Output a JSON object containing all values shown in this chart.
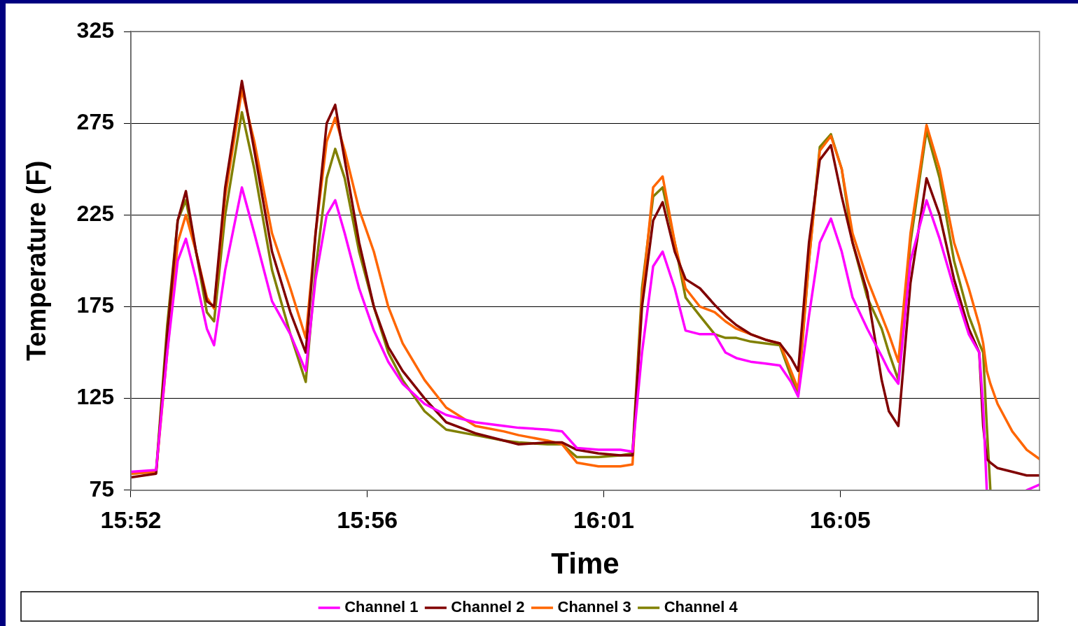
{
  "chart_data": {
    "type": "line",
    "xlabel": "Time",
    "ylabel": "Temperature (F)",
    "grid": "y",
    "legend": "bottom",
    "marker": "none",
    "xlim": [
      15.8667,
      16.1442
    ],
    "ylim": [
      75,
      325
    ],
    "yticks": [
      75,
      125,
      175,
      225,
      275,
      325
    ],
    "xticks": [
      {
        "value": 15.8667,
        "label": "15:52"
      },
      {
        "value": 15.9389,
        "label": "15:56"
      },
      {
        "value": 16.0111,
        "label": "16:01"
      },
      {
        "value": 16.0833,
        "label": "16:05"
      }
    ],
    "x": [
      15.8667,
      15.8744,
      15.8778,
      15.881,
      15.8835,
      15.8866,
      15.8899,
      15.8921,
      15.8955,
      15.9006,
      15.9044,
      15.9098,
      15.9154,
      15.9201,
      15.9231,
      15.9265,
      15.9291,
      15.932,
      15.9364,
      15.9409,
      15.9453,
      15.9497,
      15.9564,
      15.963,
      15.9719,
      15.9807,
      15.9851,
      15.994,
      15.9984,
      16.0029,
      16.0095,
      16.0162,
      16.0199,
      16.0228,
      16.0262,
      16.0291,
      16.0328,
      16.0361,
      16.0405,
      16.045,
      16.0483,
      16.0516,
      16.056,
      16.0605,
      16.0649,
      16.0683,
      16.0705,
      16.0738,
      16.0771,
      16.0805,
      16.0838,
      16.0871,
      16.0916,
      16.096,
      16.0982,
      16.1011,
      16.1048,
      16.1097,
      16.1137,
      16.1181,
      16.1226,
      16.1258,
      16.127,
      16.1281,
      16.1292,
      16.1314,
      16.1359,
      16.1403,
      16.1442
    ],
    "series": [
      {
        "name": "Channel 1",
        "color": "#ff00ff",
        "values": [
          85,
          86,
          150,
          200,
          212,
          190,
          163,
          154,
          195,
          240,
          215,
          178,
          160,
          140,
          190,
          225,
          233,
          215,
          185,
          162,
          145,
          133,
          122,
          116,
          112,
          110,
          109,
          108,
          107,
          98,
          97,
          97,
          96,
          150,
          197,
          205,
          185,
          162,
          160,
          160,
          150,
          147,
          145,
          144,
          143,
          134,
          126,
          170,
          210,
          223,
          205,
          180,
          163,
          148,
          140,
          133,
          200,
          233,
          212,
          185,
          160,
          150,
          120,
          75,
          null,
          null,
          null,
          75,
          78
        ]
      },
      {
        "name": "Channel 2",
        "color": "#800000",
        "values": [
          82,
          84,
          160,
          222,
          238,
          205,
          178,
          175,
          240,
          298,
          260,
          205,
          172,
          150,
          215,
          275,
          285,
          255,
          210,
          175,
          153,
          140,
          125,
          112,
          106,
          102,
          100,
          101,
          101,
          97,
          95,
          94,
          94,
          175,
          222,
          232,
          205,
          190,
          185,
          176,
          170,
          165,
          160,
          157,
          155,
          147,
          140,
          210,
          255,
          263,
          235,
          210,
          183,
          135,
          118,
          110,
          188,
          245,
          225,
          190,
          163,
          150,
          110,
          92,
          90,
          87,
          85,
          83,
          83
        ]
      },
      {
        "name": "Channel 3",
        "color": "#ff6600",
        "values": [
          84,
          85,
          150,
          210,
          225,
          205,
          180,
          174,
          235,
          293,
          265,
          215,
          185,
          158,
          215,
          265,
          278,
          260,
          228,
          205,
          175,
          155,
          135,
          120,
          110,
          107,
          105,
          102,
          100,
          90,
          88,
          88,
          89,
          180,
          240,
          246,
          210,
          185,
          175,
          172,
          167,
          163,
          160,
          157,
          155,
          140,
          130,
          200,
          260,
          268,
          250,
          215,
          190,
          170,
          160,
          145,
          215,
          274,
          250,
          210,
          185,
          165,
          155,
          140,
          133,
          122,
          107,
          97,
          92
        ]
      },
      {
        "name": "Channel 4",
        "color": "#808000",
        "values": [
          84,
          85,
          165,
          222,
          233,
          205,
          172,
          167,
          225,
          281,
          250,
          195,
          160,
          134,
          195,
          245,
          261,
          245,
          205,
          175,
          150,
          135,
          118,
          108,
          105,
          102,
          101,
          100,
          100,
          93,
          93,
          94,
          95,
          185,
          235,
          240,
          210,
          180,
          170,
          160,
          158,
          158,
          156,
          155,
          154,
          137,
          127,
          200,
          262,
          269,
          250,
          210,
          180,
          163,
          150,
          135,
          210,
          271,
          245,
          200,
          170,
          155,
          150,
          110,
          75,
          null,
          null,
          null,
          null
        ]
      }
    ]
  }
}
